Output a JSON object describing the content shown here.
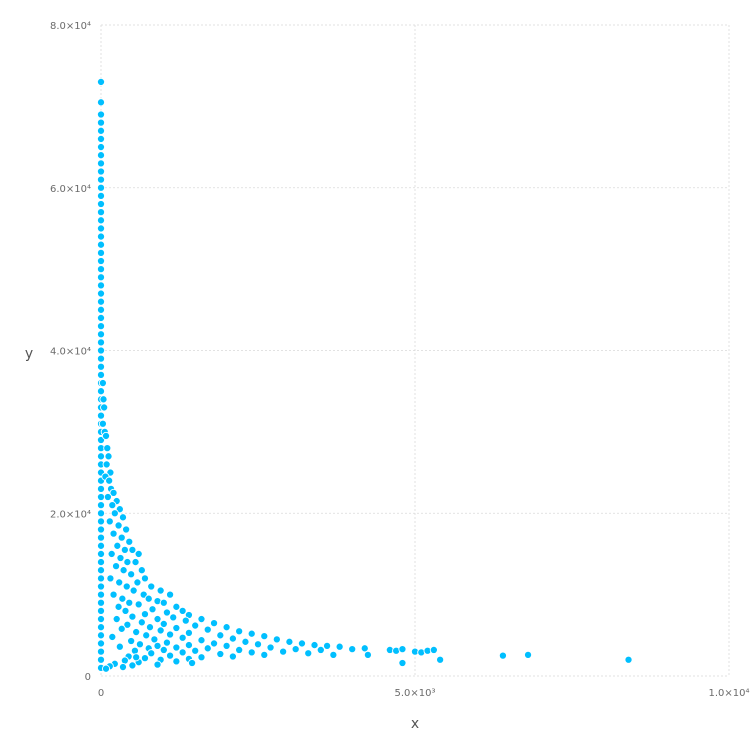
{
  "chart_data": {
    "type": "scatter",
    "title": "",
    "xlabel": "x",
    "ylabel": "y",
    "xlim": [
      0,
      10000
    ],
    "ylim": [
      0,
      80000
    ],
    "grid": true,
    "point_color": "#00BFFF",
    "point_stroke": "#ffffff",
    "x_ticks": [
      {
        "value": 0,
        "label": "0"
      },
      {
        "value": 5000,
        "label": "5.0×10³"
      },
      {
        "value": 10000,
        "label": "1.0×10⁴"
      }
    ],
    "y_ticks": [
      {
        "value": 0,
        "label": "0"
      },
      {
        "value": 20000,
        "label": "2.0×10⁴"
      },
      {
        "value": 40000,
        "label": "4.0×10⁴"
      },
      {
        "value": 60000,
        "label": "6.0×10⁴"
      },
      {
        "value": 80000,
        "label": "8.0×10⁴"
      }
    ],
    "points": [
      [
        0,
        73000
      ],
      [
        0,
        70500
      ],
      [
        0,
        69000
      ],
      [
        0,
        68000
      ],
      [
        0,
        67000
      ],
      [
        0,
        66000
      ],
      [
        0,
        65000
      ],
      [
        0,
        64000
      ],
      [
        0,
        63000
      ],
      [
        0,
        62000
      ],
      [
        0,
        61000
      ],
      [
        0,
        60000
      ],
      [
        0,
        59000
      ],
      [
        0,
        58000
      ],
      [
        0,
        57000
      ],
      [
        0,
        56000
      ],
      [
        0,
        55000
      ],
      [
        0,
        54000
      ],
      [
        0,
        53000
      ],
      [
        0,
        52000
      ],
      [
        0,
        51000
      ],
      [
        0,
        50000
      ],
      [
        0,
        49000
      ],
      [
        0,
        48000
      ],
      [
        0,
        47000
      ],
      [
        0,
        46000
      ],
      [
        0,
        45000
      ],
      [
        0,
        44000
      ],
      [
        0,
        43000
      ],
      [
        0,
        42000
      ],
      [
        0,
        41000
      ],
      [
        0,
        40000
      ],
      [
        0,
        39000
      ],
      [
        0,
        38000
      ],
      [
        0,
        37000
      ],
      [
        0,
        36000
      ],
      [
        0,
        35000
      ],
      [
        0,
        34000
      ],
      [
        0,
        33000
      ],
      [
        0,
        32000
      ],
      [
        0,
        31000
      ],
      [
        0,
        30000
      ],
      [
        0,
        29000
      ],
      [
        0,
        28000
      ],
      [
        0,
        27000
      ],
      [
        0,
        26000
      ],
      [
        0,
        25000
      ],
      [
        0,
        24000
      ],
      [
        0,
        23000
      ],
      [
        0,
        22000
      ],
      [
        0,
        21000
      ],
      [
        0,
        20000
      ],
      [
        0,
        19000
      ],
      [
        0,
        18000
      ],
      [
        0,
        17000
      ],
      [
        0,
        16000
      ],
      [
        0,
        15000
      ],
      [
        0,
        14000
      ],
      [
        0,
        13000
      ],
      [
        0,
        12000
      ],
      [
        0,
        11000
      ],
      [
        0,
        10000
      ],
      [
        0,
        9000
      ],
      [
        0,
        8000
      ],
      [
        0,
        7000
      ],
      [
        0,
        6000
      ],
      [
        0,
        5000
      ],
      [
        0,
        4000
      ],
      [
        0,
        3000
      ],
      [
        0,
        2000
      ],
      [
        0,
        1000
      ],
      [
        30,
        36000
      ],
      [
        40,
        34000
      ],
      [
        50,
        33000
      ],
      [
        30,
        31000
      ],
      [
        60,
        30000
      ],
      [
        80,
        29500
      ],
      [
        100,
        28000
      ],
      [
        120,
        27000
      ],
      [
        90,
        26000
      ],
      [
        150,
        25000
      ],
      [
        70,
        24500
      ],
      [
        130,
        24000
      ],
      [
        160,
        23000
      ],
      [
        200,
        22500
      ],
      [
        110,
        22000
      ],
      [
        250,
        21500
      ],
      [
        180,
        21000
      ],
      [
        300,
        20500
      ],
      [
        220,
        20000
      ],
      [
        350,
        19500
      ],
      [
        140,
        19000
      ],
      [
        280,
        18500
      ],
      [
        400,
        18000
      ],
      [
        200,
        17500
      ],
      [
        330,
        17000
      ],
      [
        450,
        16500
      ],
      [
        260,
        16000
      ],
      [
        380,
        15500
      ],
      [
        500,
        15500
      ],
      [
        600,
        15000
      ],
      [
        170,
        15000
      ],
      [
        310,
        14500
      ],
      [
        420,
        14000
      ],
      [
        550,
        14000
      ],
      [
        240,
        13500
      ],
      [
        650,
        13000
      ],
      [
        360,
        13000
      ],
      [
        480,
        12500
      ],
      [
        700,
        12000
      ],
      [
        150,
        12000
      ],
      [
        580,
        11500
      ],
      [
        290,
        11500
      ],
      [
        800,
        11000
      ],
      [
        410,
        11000
      ],
      [
        950,
        10500
      ],
      [
        520,
        10500
      ],
      [
        680,
        10000
      ],
      [
        1100,
        10000
      ],
      [
        200,
        10000
      ],
      [
        340,
        9500
      ],
      [
        760,
        9500
      ],
      [
        900,
        9200
      ],
      [
        450,
        9000
      ],
      [
        1000,
        9000
      ],
      [
        600,
        8800
      ],
      [
        1200,
        8500
      ],
      [
        280,
        8500
      ],
      [
        820,
        8200
      ],
      [
        1300,
        8000
      ],
      [
        390,
        8000
      ],
      [
        1050,
        7800
      ],
      [
        700,
        7600
      ],
      [
        1400,
        7500
      ],
      [
        500,
        7300
      ],
      [
        1150,
        7200
      ],
      [
        900,
        7000
      ],
      [
        1600,
        7000
      ],
      [
        250,
        7000
      ],
      [
        1350,
        6800
      ],
      [
        650,
        6600
      ],
      [
        1800,
        6500
      ],
      [
        1000,
        6400
      ],
      [
        420,
        6300
      ],
      [
        1500,
        6200
      ],
      [
        780,
        6000
      ],
      [
        2000,
        6000
      ],
      [
        1200,
        5900
      ],
      [
        330,
        5800
      ],
      [
        1700,
        5700
      ],
      [
        950,
        5600
      ],
      [
        2200,
        5500
      ],
      [
        560,
        5400
      ],
      [
        1400,
        5300
      ],
      [
        2400,
        5200
      ],
      [
        1100,
        5100
      ],
      [
        720,
        5000
      ],
      [
        1900,
        5000
      ],
      [
        2600,
        4900
      ],
      [
        180,
        4800
      ],
      [
        1300,
        4700
      ],
      [
        2100,
        4600
      ],
      [
        850,
        4500
      ],
      [
        2800,
        4500
      ],
      [
        1600,
        4400
      ],
      [
        480,
        4300
      ],
      [
        2300,
        4200
      ],
      [
        3000,
        4200
      ],
      [
        1050,
        4100
      ],
      [
        1800,
        4000
      ],
      [
        3200,
        4000
      ],
      [
        620,
        3900
      ],
      [
        2500,
        3900
      ],
      [
        1400,
        3800
      ],
      [
        3400,
        3800
      ],
      [
        900,
        3700
      ],
      [
        2000,
        3700
      ],
      [
        3600,
        3700
      ],
      [
        300,
        3600
      ],
      [
        1200,
        3500
      ],
      [
        2700,
        3500
      ],
      [
        3800,
        3600
      ],
      [
        760,
        3400
      ],
      [
        1700,
        3400
      ],
      [
        3100,
        3300
      ],
      [
        2200,
        3200
      ],
      [
        1000,
        3200
      ],
      [
        3500,
        3200
      ],
      [
        540,
        3100
      ],
      [
        1500,
        3100
      ],
      [
        2900,
        3000
      ],
      [
        4000,
        3300
      ],
      [
        2400,
        2900
      ],
      [
        1300,
        2900
      ],
      [
        3300,
        2800
      ],
      [
        800,
        2800
      ],
      [
        1900,
        2700
      ],
      [
        3700,
        2600
      ],
      [
        2600,
        2600
      ],
      [
        1100,
        2500
      ],
      [
        2100,
        2400
      ],
      [
        440,
        2400
      ],
      [
        1600,
        2300
      ],
      [
        700,
        2200
      ],
      [
        1400,
        2100
      ],
      [
        950,
        2000
      ],
      [
        380,
        1900
      ],
      [
        1200,
        1800
      ],
      [
        600,
        1700
      ],
      [
        220,
        1500
      ],
      [
        900,
        1400
      ],
      [
        500,
        1300
      ],
      [
        140,
        1200
      ],
      [
        350,
        1100
      ],
      [
        80,
        900
      ],
      [
        4200,
        3400
      ],
      [
        4250,
        2600
      ],
      [
        4600,
        3200
      ],
      [
        4700,
        3100
      ],
      [
        4800,
        3300
      ],
      [
        4800,
        1600
      ],
      [
        5000,
        3000
      ],
      [
        5100,
        2900
      ],
      [
        5200,
        3100
      ],
      [
        5300,
        3200
      ],
      [
        5400,
        2000
      ],
      [
        6400,
        2500
      ],
      [
        6800,
        2600
      ],
      [
        8400,
        2000
      ],
      [
        1450,
        1600
      ],
      [
        560,
        2300
      ]
    ]
  }
}
